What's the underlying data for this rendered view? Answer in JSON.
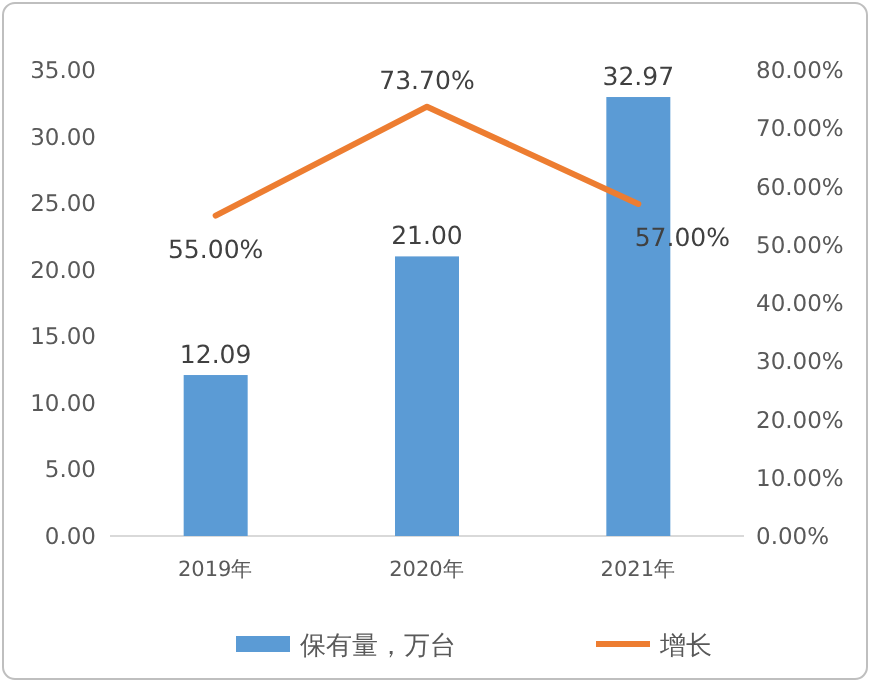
{
  "chart_data": {
    "type": "bar",
    "categories": [
      "2019年",
      "2020年",
      "2021年"
    ],
    "series": [
      {
        "name": "保有量，万台",
        "color": "#5b9bd5",
        "values": [
          12.09,
          21.0,
          32.97
        ],
        "value_labels": [
          "12.09",
          "21.00",
          "32.97"
        ]
      },
      {
        "name": "增长",
        "type": "line",
        "axis": "y2",
        "color": "#ed7d31",
        "values": [
          55.0,
          73.7,
          57.0
        ],
        "value_labels": [
          "55.00%",
          "73.70%",
          "57.00%"
        ]
      }
    ],
    "ylim": [
      0,
      35
    ],
    "yticks": [
      {
        "value": 0,
        "label": "0.00"
      },
      {
        "value": 5,
        "label": "5.00"
      },
      {
        "value": 10,
        "label": "10.00"
      },
      {
        "value": 15,
        "label": "15.00"
      },
      {
        "value": 20,
        "label": "20.00"
      },
      {
        "value": 25,
        "label": "25.00"
      },
      {
        "value": 30,
        "label": "30.00"
      },
      {
        "value": 35,
        "label": "35.00"
      }
    ],
    "y2lim": [
      0,
      80
    ],
    "y2ticks": [
      {
        "value": 0,
        "label": "0.00%"
      },
      {
        "value": 10,
        "label": "10.00%"
      },
      {
        "value": 20,
        "label": "20.00%"
      },
      {
        "value": 30,
        "label": "30.00%"
      },
      {
        "value": 40,
        "label": "40.00%"
      },
      {
        "value": 50,
        "label": "50.00%"
      },
      {
        "value": 60,
        "label": "60.00%"
      },
      {
        "value": 70,
        "label": "70.00%"
      },
      {
        "value": 80,
        "label": "80.00%"
      }
    ],
    "legend": "bottom"
  }
}
